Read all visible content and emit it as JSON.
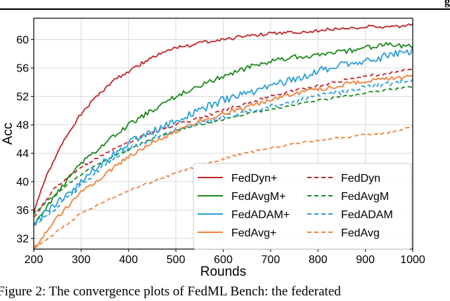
{
  "header_fragment": "g",
  "caption": "Figure 2: The convergence plots of FedML Bench: the federated",
  "chart_data": {
    "type": "line",
    "title": "",
    "xlabel": "Rounds",
    "ylabel": "Acc",
    "xlim": [
      200,
      1000
    ],
    "ylim": [
      30.5,
      63
    ],
    "xticks": [
      200,
      300,
      400,
      500,
      600,
      700,
      800,
      900,
      1000
    ],
    "yticks": [
      32,
      36,
      40,
      44,
      48,
      52,
      56,
      60
    ],
    "grid": true,
    "legend": {
      "placement": "lower-right",
      "columns": 2
    },
    "series": [
      {
        "name": "FedDyn+",
        "color": "#c0282d",
        "dash": "solid",
        "x": [
          200,
          225,
          250,
          275,
          300,
          325,
          350,
          375,
          400,
          450,
          500,
          550,
          600,
          650,
          700,
          750,
          800,
          850,
          900,
          950,
          1000
        ],
        "y": [
          35.5,
          40.5,
          44,
          47,
          49.5,
          51.5,
          53,
          54.5,
          55.5,
          57.5,
          58.8,
          59.5,
          60,
          60.5,
          60.8,
          61,
          61.3,
          61.5,
          61.8,
          61.7,
          62
        ]
      },
      {
        "name": "FedDyn",
        "color": "#c0282d",
        "dash": "dashed",
        "x": [
          200,
          250,
          300,
          350,
          400,
          450,
          500,
          550,
          600,
          650,
          700,
          750,
          800,
          850,
          900,
          950,
          1000
        ],
        "y": [
          35,
          39.5,
          42,
          44,
          45.5,
          47,
          48,
          49,
          50,
          51,
          52,
          52.8,
          53.5,
          54.2,
          54.8,
          55.3,
          55.8
        ]
      },
      {
        "name": "FedAvgM+",
        "color": "#1e8a1e",
        "dash": "solid",
        "x": [
          200,
          250,
          300,
          350,
          400,
          450,
          500,
          550,
          600,
          650,
          700,
          750,
          800,
          850,
          900,
          950,
          1000
        ],
        "y": [
          34,
          38.5,
          42.5,
          45.5,
          48,
          50,
          52,
          53.5,
          54.8,
          56,
          57,
          57.5,
          57.8,
          58.3,
          58.8,
          59.3,
          59
        ]
      },
      {
        "name": "FedAvgM",
        "color": "#1e8a1e",
        "dash": "dashed",
        "x": [
          200,
          250,
          300,
          350,
          400,
          450,
          500,
          550,
          600,
          650,
          700,
          750,
          800,
          850,
          900,
          950,
          1000
        ],
        "y": [
          35.5,
          38.5,
          41,
          43,
          44.5,
          46,
          47.2,
          48,
          48.8,
          49.5,
          50.2,
          50.8,
          51.4,
          52,
          52.5,
          53,
          53.3
        ]
      },
      {
        "name": "FedADAM+",
        "color": "#2c9fd6",
        "dash": "solid",
        "x": [
          200,
          250,
          300,
          350,
          400,
          450,
          500,
          550,
          600,
          650,
          700,
          750,
          800,
          850,
          900,
          950,
          1000
        ],
        "y": [
          34,
          37,
          40,
          43,
          45.5,
          47,
          48.5,
          50,
          51.5,
          52.5,
          53.5,
          54.5,
          55.5,
          56.5,
          57,
          57.8,
          58.5
        ]
      },
      {
        "name": "FedADAM",
        "color": "#2c9fd6",
        "dash": "dashed",
        "x": [
          200,
          250,
          300,
          350,
          400,
          450,
          500,
          550,
          600,
          650,
          700,
          750,
          800,
          850,
          900,
          950,
          1000
        ],
        "y": [
          33.5,
          36.5,
          39.5,
          42.5,
          44.5,
          46,
          47.3,
          48.2,
          49,
          49.8,
          50.5,
          51.3,
          52,
          52.6,
          53.2,
          53.8,
          54.3
        ]
      },
      {
        "name": "FedAvg+",
        "color": "#f0823c",
        "dash": "solid",
        "x": [
          200,
          250,
          300,
          350,
          400,
          450,
          500,
          550,
          600,
          650,
          700,
          750,
          800,
          850,
          900,
          950,
          1000
        ],
        "y": [
          30.5,
          35,
          38.5,
          41,
          43.5,
          45.5,
          47,
          48.5,
          49.5,
          50.5,
          51.5,
          52.3,
          53,
          53.6,
          54.1,
          54.5,
          54.8
        ]
      },
      {
        "name": "FedAvg",
        "color": "#f0823c",
        "dash": "dashed",
        "x": [
          200,
          250,
          300,
          350,
          400,
          450,
          500,
          550,
          600,
          650,
          700,
          750,
          800,
          850,
          900,
          950,
          1000
        ],
        "y": [
          30.5,
          33,
          35.5,
          37.2,
          38.7,
          40,
          41.2,
          42.2,
          43.2,
          44,
          44.7,
          45.3,
          45.8,
          46.2,
          46.6,
          46.9,
          47.8
        ]
      }
    ]
  }
}
